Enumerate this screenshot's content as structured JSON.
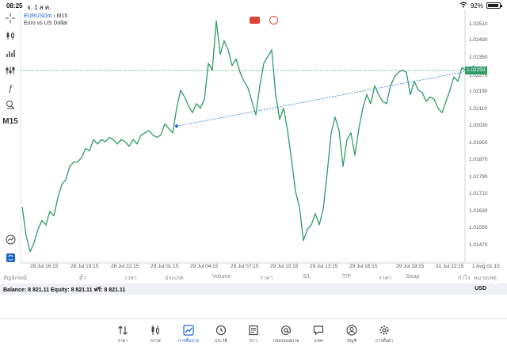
{
  "status": {
    "time": "08:25",
    "date": "จ. 1 ส.ค.",
    "battery": "92%"
  },
  "symbol": {
    "code": "EURUSDm",
    "timeframe": "M15",
    "description": "Euro vs US Dollar"
  },
  "toolbar": {
    "timeframe_label": "M15"
  },
  "current_price": "1.02293",
  "price_ticks": [
    "1.02510",
    "1.02430",
    "1.02350",
    "1.02270",
    "1.02190",
    "1.02110",
    "1.02030",
    "1.01950",
    "1.01870",
    "1.01790",
    "1.01710",
    "1.01630",
    "1.01550",
    "1.01470"
  ],
  "time_ticks": [
    "28 Jul 16:15",
    "28 Jul 19:15",
    "28 Jul 22:15",
    "29 Jul 01:15",
    "29 Jul 04:15",
    "29 Jul 07:15",
    "29 Jul 10:15",
    "29 Jul 13:15",
    "29 Jul 16:15",
    "29 Jul 19:15",
    "31 Jul 22:15",
    "1 Aug 01:15"
  ],
  "trade_columns": [
    "สัญลักษณ์",
    "ตั๋ว",
    "เวลา",
    "ประเภท",
    "Volume",
    "ราคา",
    "S/L",
    "T/P",
    "ราคา",
    "Swap",
    "กำไร",
    "หมายเหตุ"
  ],
  "account": {
    "balance_text": "Balance: 8 821.11 Equity: 8 821.11 ฟรี: 8 821.11",
    "currency": "USD"
  },
  "nav": [
    {
      "label": "ราคา",
      "icon": "arrows-updown-icon"
    },
    {
      "label": "กราฟ",
      "icon": "candles-icon"
    },
    {
      "label": "การซื้อขาย",
      "icon": "trade-chart-icon",
      "active": true
    },
    {
      "label": "ประวัติ",
      "icon": "history-icon"
    },
    {
      "label": "ข่าว",
      "icon": "news-icon"
    },
    {
      "label": "กล่องจดหมาย",
      "icon": "at-icon"
    },
    {
      "label": "แชท",
      "icon": "chat-icon"
    },
    {
      "label": "บัญชี",
      "icon": "account-icon"
    },
    {
      "label": "การตั้งค่า",
      "icon": "settings-icon"
    }
  ],
  "chart_data": {
    "type": "line",
    "y_range": [
      1.0143,
      1.0256
    ],
    "line_color": "#2f9a67",
    "y": [
      1.0168,
      1.0155,
      1.0148,
      1.0152,
      1.0158,
      1.0162,
      1.016,
      1.0166,
      1.0164,
      1.0172,
      1.0178,
      1.018,
      1.0186,
      1.0188,
      1.0188,
      1.019,
      1.0194,
      1.0193,
      1.0198,
      1.0196,
      1.0198,
      1.0197,
      1.0199,
      1.0198,
      1.0196,
      1.0198,
      1.0197,
      1.0195,
      1.0198,
      1.0196,
      1.02,
      1.0201,
      1.0202,
      1.02,
      1.0199,
      1.02,
      1.0205,
      1.0203,
      1.0201,
      1.0212,
      1.022,
      1.0217,
      1.0213,
      1.021,
      1.0214,
      1.0212,
      1.0216,
      1.0232,
      1.0229,
      1.0251,
      1.0236,
      1.0242,
      1.0238,
      1.0231,
      1.0234,
      1.0228,
      1.0224,
      1.0221,
      1.0215,
      1.0209,
      1.0222,
      1.0232,
      1.0235,
      1.0238,
      1.0218,
      1.0207,
      1.0212,
      1.0202,
      1.0189,
      1.0175,
      1.0168,
      1.0153,
      1.0158,
      1.016,
      1.0165,
      1.016,
      1.0167,
      1.0183,
      1.0201,
      1.0208,
      1.0202,
      1.0186,
      1.0198,
      1.0201,
      1.0191,
      1.0203,
      1.0212,
      1.0218,
      1.0214,
      1.0222,
      1.0218,
      1.0215,
      1.0214,
      1.0222,
      1.0226,
      1.0228,
      1.0229,
      1.0228,
      1.0218,
      1.0224,
      1.022,
      1.0219,
      1.0215,
      1.0217,
      1.0216,
      1.0212,
      1.021,
      1.0215,
      1.022,
      1.0226,
      1.0224,
      1.023,
      1.0229,
      1.0229,
      1.0231
    ],
    "trend_start": [
      39,
      1.0204
    ],
    "trend_end": [
      114,
      1.0229
    ]
  }
}
